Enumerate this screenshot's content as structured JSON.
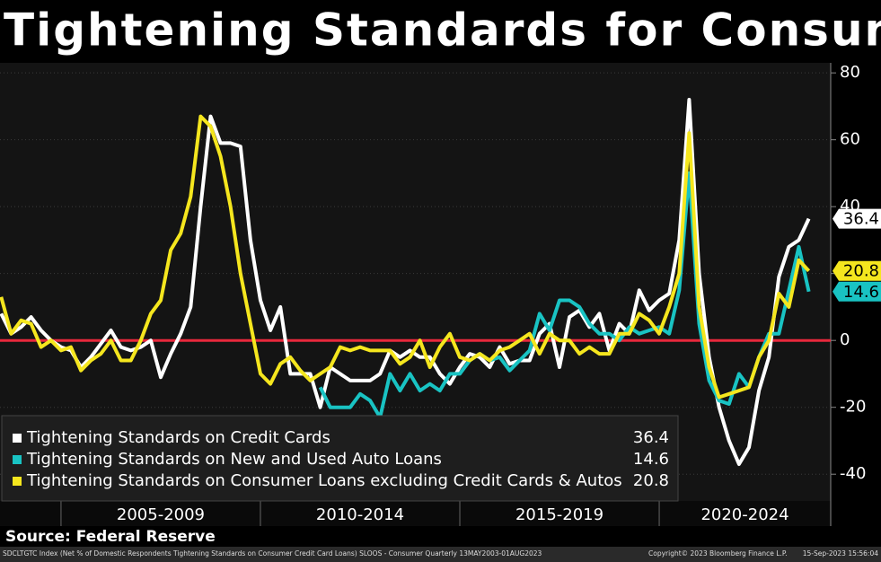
{
  "chart_data": {
    "type": "line",
    "title": "Tightening Standards for Consume",
    "source": "Source: Federal Reserve",
    "footer": {
      "description": "SDCLTGTC Index (Net % of Domestic Respondents Tightening Standards on Consumer Credit Card Loans) SLOOS - Consumer  Quarterly 13MAY2003-01AUG2023",
      "copyright": "Copyright© 2023 Bloomberg Finance L.P.",
      "timestamp": "15-Sep-2023 15:56:04"
    },
    "x": [
      2003.5,
      2003.75,
      2004,
      2004.25,
      2004.5,
      2004.75,
      2005,
      2005.25,
      2005.5,
      2005.75,
      2006,
      2006.25,
      2006.5,
      2006.75,
      2007,
      2007.25,
      2007.5,
      2007.75,
      2008,
      2008.25,
      2008.5,
      2008.75,
      2009,
      2009.25,
      2009.5,
      2009.75,
      2010,
      2010.25,
      2010.5,
      2010.75,
      2011,
      2011.25,
      2011.5,
      2011.75,
      2012,
      2012.25,
      2012.5,
      2012.75,
      2013,
      2013.25,
      2013.5,
      2013.75,
      2014,
      2014.25,
      2014.5,
      2014.75,
      2015,
      2015.25,
      2015.5,
      2015.75,
      2016,
      2016.25,
      2016.5,
      2016.75,
      2017,
      2017.25,
      2017.5,
      2017.75,
      2018,
      2018.25,
      2018.5,
      2018.75,
      2019,
      2019.25,
      2019.5,
      2019.75,
      2020,
      2020.25,
      2020.5,
      2020.75,
      2021,
      2021.25,
      2021.5,
      2021.75,
      2022,
      2022.25,
      2022.5,
      2022.75,
      2023,
      2023.25,
      2023.5,
      2023.75
    ],
    "series": [
      {
        "name": "Tightening Standards on Credit Cards",
        "color": "#ffffff",
        "values": [
          8,
          2,
          4,
          7,
          3,
          0,
          -2,
          -3,
          -8,
          -5,
          -1,
          3,
          -2,
          -3,
          -2,
          0,
          -11,
          -4,
          2,
          10,
          40,
          67,
          59,
          59,
          58,
          30,
          12,
          3,
          10,
          -10,
          -10,
          -10,
          -20,
          -8,
          -10,
          -12,
          -12,
          -12,
          -10,
          -3,
          -5,
          -3,
          -5,
          -5,
          -10,
          -13,
          -8,
          -4,
          -5,
          -8,
          -2,
          -7,
          -6,
          -6,
          2,
          5,
          -8,
          7,
          9,
          4,
          8,
          -3,
          5,
          2,
          15,
          9,
          12,
          14,
          30,
          72,
          20,
          -5,
          -20,
          -30,
          -37,
          -32,
          -15,
          -5,
          19,
          28,
          30,
          36.4
        ]
      },
      {
        "name": "Tightening Standards on New and Used Auto Loans",
        "color": "#19c3c3",
        "values": [
          null,
          null,
          null,
          null,
          null,
          null,
          null,
          null,
          null,
          null,
          null,
          null,
          null,
          null,
          null,
          null,
          null,
          null,
          null,
          null,
          null,
          null,
          null,
          null,
          null,
          null,
          null,
          null,
          null,
          null,
          null,
          null,
          -14,
          -20,
          -20,
          -20,
          -16,
          -18,
          -23,
          -10,
          -15,
          -10,
          -15,
          -13,
          -15,
          -10,
          -10,
          -6,
          -4,
          -6,
          -5,
          -9,
          -6,
          -3,
          8,
          3,
          12,
          12,
          10,
          5,
          2,
          2,
          0,
          4,
          2,
          3,
          4,
          2,
          15,
          50,
          5,
          -12,
          -18,
          -19,
          -10,
          -14,
          -5,
          2,
          2,
          15,
          28,
          14.6
        ]
      },
      {
        "name": "Tightening Standards on Consumer Loans excluding Credit Cards & Autos",
        "color": "#f5e61e",
        "values": [
          13,
          2,
          6,
          5,
          -2,
          0,
          -3,
          -2,
          -9,
          -6,
          -4,
          0,
          -6,
          -6,
          0,
          8,
          12,
          27,
          32,
          43,
          67,
          64,
          55,
          40,
          20,
          5,
          -10,
          -13,
          -7,
          -5,
          -9,
          -12,
          -10,
          -8,
          -2,
          -3,
          -2,
          -3,
          -3,
          -3,
          -7,
          -5,
          0,
          -8,
          -2,
          2,
          -5,
          -6,
          -4,
          -6,
          -3,
          -2,
          0,
          2,
          -4,
          2,
          0,
          0,
          -4,
          -2,
          -4,
          -4,
          2,
          2,
          8,
          6,
          2,
          10,
          20,
          62,
          10,
          -8,
          -17,
          -16,
          -15,
          -14,
          -5,
          0,
          14,
          10,
          24,
          20.8
        ]
      }
    ],
    "xlim": [
      2003.47,
      2024.3
    ],
    "ylim": [
      -48,
      83
    ],
    "yticks": [
      -40,
      -20,
      0,
      20,
      40,
      60,
      80
    ],
    "x_periods": [
      {
        "label": "2005-2009",
        "start": 2005,
        "end": 2010
      },
      {
        "label": "2010-2014",
        "start": 2010,
        "end": 2015
      },
      {
        "label": "2015-2019",
        "start": 2015,
        "end": 2020
      },
      {
        "label": "2020-2024",
        "start": 2020,
        "end": 2025
      }
    ],
    "reference_line": {
      "value": 0,
      "color": "#e8283c"
    },
    "grid": true,
    "legend": "bottom-left"
  }
}
